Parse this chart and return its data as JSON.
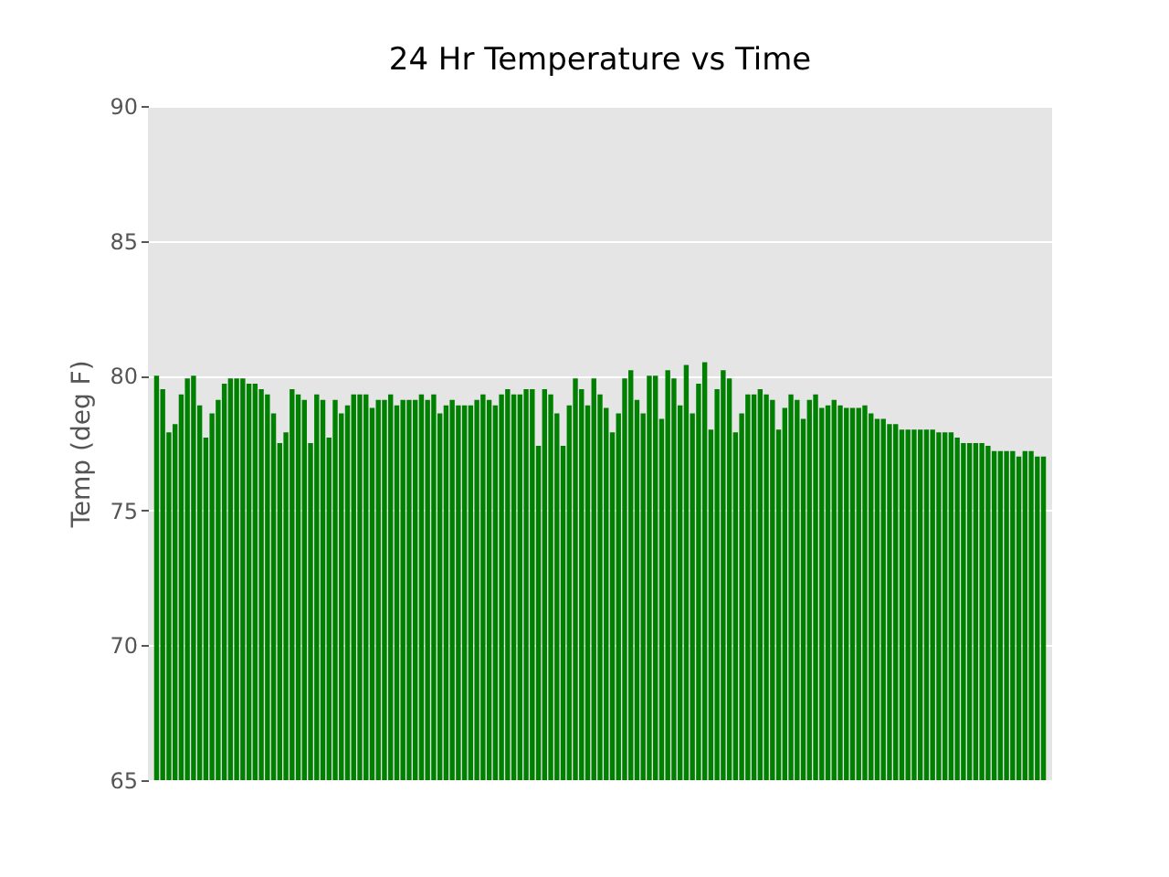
{
  "chart_data": {
    "type": "bar",
    "title": "24 Hr Temperature vs Time",
    "ylabel": "Temp (deg F)",
    "categories": [
      null,
      null,
      null,
      null,
      null,
      null,
      null,
      null,
      null,
      null,
      null,
      null,
      null,
      null,
      null,
      null,
      null,
      null,
      null,
      null,
      null,
      null,
      null,
      null,
      null,
      null,
      null,
      null,
      null,
      null,
      null,
      null,
      null,
      null,
      null,
      null,
      null,
      null,
      null,
      null,
      null,
      null,
      null,
      null,
      null,
      null,
      null,
      null,
      null,
      null,
      null,
      null,
      null,
      null,
      null,
      null,
      null,
      null,
      null,
      null,
      null,
      null,
      null,
      null,
      null,
      null,
      null,
      null,
      null,
      null,
      null,
      null,
      null,
      null,
      null,
      null,
      null,
      null,
      null,
      null,
      null,
      null,
      null,
      null,
      null,
      null,
      null,
      null,
      null,
      null,
      null,
      null,
      null,
      null,
      null,
      null,
      null,
      null,
      null,
      null,
      null,
      null,
      null,
      null,
      null,
      null,
      null,
      null,
      null,
      null,
      null,
      null,
      null,
      null,
      null,
      null,
      null,
      null,
      null,
      null,
      null,
      null,
      null,
      null,
      null,
      null,
      null,
      null,
      null,
      null,
      null,
      null,
      null,
      null,
      null,
      null,
      null,
      null,
      null,
      null,
      null,
      null,
      null,
      null,
      null
    ],
    "values": [
      80.0,
      79.5,
      77.9,
      78.2,
      79.3,
      79.9,
      80.0,
      78.9,
      77.7,
      78.6,
      79.1,
      79.7,
      79.9,
      79.9,
      79.9,
      79.7,
      79.7,
      79.5,
      79.3,
      78.6,
      77.5,
      77.9,
      79.5,
      79.3,
      79.1,
      77.5,
      79.3,
      79.1,
      77.7,
      79.1,
      78.6,
      78.9,
      79.3,
      79.3,
      79.3,
      78.8,
      79.1,
      79.1,
      79.3,
      78.9,
      79.1,
      79.1,
      79.1,
      79.3,
      79.1,
      79.3,
      78.6,
      78.9,
      79.1,
      78.9,
      78.9,
      78.9,
      79.1,
      79.3,
      79.1,
      78.9,
      79.3,
      79.5,
      79.3,
      79.3,
      79.5,
      79.5,
      77.4,
      79.5,
      79.3,
      78.6,
      77.4,
      78.9,
      79.9,
      79.5,
      78.9,
      79.9,
      79.3,
      78.8,
      77.9,
      78.6,
      79.9,
      80.2,
      79.1,
      78.6,
      80.0,
      80.0,
      78.4,
      80.2,
      79.9,
      78.9,
      80.4,
      78.6,
      79.7,
      80.5,
      78.0,
      79.5,
      80.2,
      79.9,
      77.9,
      78.6,
      79.3,
      79.3,
      79.5,
      79.3,
      79.1,
      78.0,
      78.8,
      79.3,
      79.1,
      78.4,
      79.1,
      79.3,
      78.8,
      78.9,
      79.1,
      78.9,
      78.8,
      78.8,
      78.8,
      78.9,
      78.6,
      78.4,
      78.4,
      78.2,
      78.2,
      78.0,
      78.0,
      78.0,
      78.0,
      78.0,
      78.0,
      77.9,
      77.9,
      77.9,
      77.7,
      77.5,
      77.5,
      77.5,
      77.5,
      77.4,
      77.2,
      77.2,
      77.2,
      77.2,
      77.0,
      77.2,
      77.2,
      77.0,
      77.0
    ],
    "color": "#008000",
    "ylim": [
      65,
      90
    ],
    "yticks": [
      65,
      70,
      75,
      80,
      85,
      90
    ],
    "grid": "y",
    "tick_labels": "y"
  }
}
